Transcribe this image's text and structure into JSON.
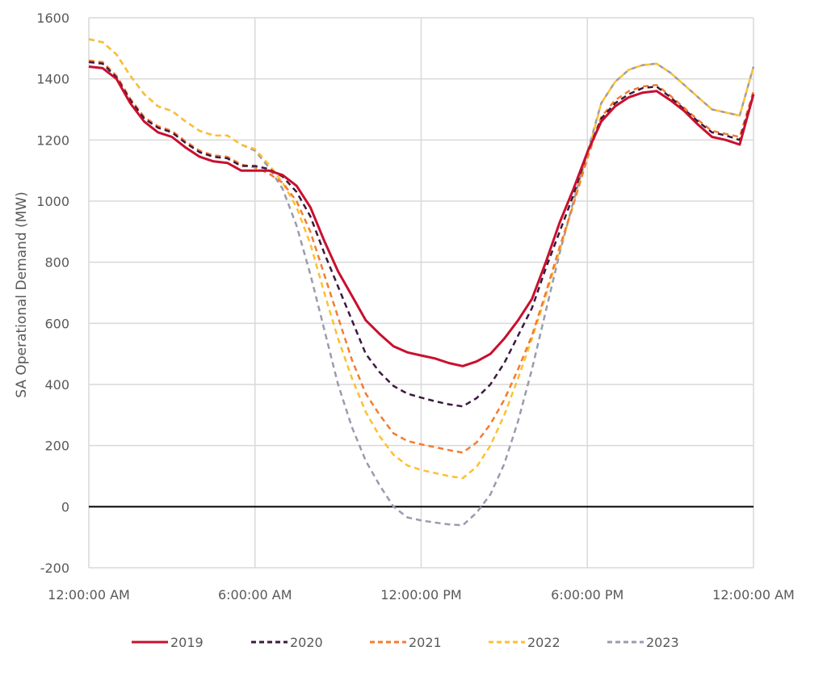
{
  "chart_data": {
    "type": "line",
    "title": "",
    "xlabel": "",
    "ylabel": "SA Operational Demand (MW)",
    "ylim": [
      -200,
      1600
    ],
    "yticks": [
      -200,
      0,
      200,
      400,
      600,
      800,
      1000,
      1200,
      1400,
      1600
    ],
    "xlim_hours": [
      0,
      24
    ],
    "xticks": [
      {
        "hour": 0,
        "label": "12:00:00 AM"
      },
      {
        "hour": 6,
        "label": "6:00:00 AM"
      },
      {
        "hour": 12,
        "label": "12:00:00 PM"
      },
      {
        "hour": 18,
        "label": "6:00:00 PM"
      },
      {
        "hour": 24,
        "label": "12:00:00 AM"
      }
    ],
    "x_step_hours": 0.5,
    "grid": true,
    "legend": "bottom",
    "series": [
      {
        "name": "2019",
        "color": "#c8102e",
        "dashed": false,
        "values": [
          1440,
          1435,
          1400,
          1320,
          1260,
          1225,
          1210,
          1175,
          1145,
          1130,
          1125,
          1100,
          1100,
          1100,
          1085,
          1050,
          980,
          870,
          770,
          690,
          610,
          565,
          525,
          505,
          495,
          485,
          470,
          460,
          475,
          500,
          550,
          610,
          680,
          800,
          930,
          1040,
          1160,
          1260,
          1310,
          1340,
          1355,
          1360,
          1330,
          1295,
          1250,
          1210,
          1200,
          1185,
          1350
        ]
      },
      {
        "name": "2020",
        "color": "#3b1a3f",
        "dashed": true,
        "values": [
          1455,
          1450,
          1405,
          1330,
          1270,
          1240,
          1225,
          1190,
          1160,
          1145,
          1140,
          1115,
          1115,
          1105,
          1080,
          1030,
          950,
          830,
          720,
          610,
          500,
          440,
          395,
          370,
          357,
          345,
          335,
          328,
          355,
          400,
          470,
          560,
          650,
          780,
          900,
          1020,
          1160,
          1270,
          1320,
          1350,
          1370,
          1375,
          1340,
          1300,
          1260,
          1225,
          1215,
          1200,
          1350
        ]
      },
      {
        "name": "2021",
        "color": "#f47c30",
        "dashed": true,
        "values": [
          1460,
          1455,
          1410,
          1335,
          1275,
          1245,
          1230,
          1195,
          1165,
          1150,
          1145,
          1120,
          1110,
          1090,
          1060,
          1000,
          900,
          760,
          620,
          480,
          370,
          300,
          240,
          215,
          204,
          195,
          185,
          177,
          210,
          270,
          350,
          450,
          560,
          700,
          850,
          990,
          1140,
          1275,
          1330,
          1360,
          1375,
          1380,
          1345,
          1305,
          1265,
          1230,
          1220,
          1210,
          1360
        ]
      },
      {
        "name": "2022",
        "color": "#fdc02f",
        "dashed": true,
        "values": [
          1530,
          1520,
          1480,
          1410,
          1350,
          1310,
          1295,
          1260,
          1230,
          1215,
          1215,
          1185,
          1170,
          1120,
          1060,
          980,
          860,
          700,
          550,
          420,
          310,
          230,
          170,
          135,
          120,
          110,
          100,
          93,
          130,
          200,
          300,
          420,
          550,
          690,
          840,
          990,
          1150,
          1320,
          1390,
          1430,
          1445,
          1450,
          1420,
          1380,
          1340,
          1300,
          1290,
          1280,
          1440
        ]
      },
      {
        "name": "2023",
        "color": "#9a9bb0",
        "dashed": true,
        "values": [
          1530,
          1520,
          1480,
          1410,
          1350,
          1310,
          1295,
          1260,
          1230,
          1215,
          1215,
          1185,
          1165,
          1110,
          1040,
          920,
          760,
          580,
          400,
          260,
          150,
          70,
          0,
          -35,
          -45,
          -52,
          -58,
          -61,
          -20,
          40,
          140,
          280,
          450,
          640,
          830,
          1000,
          1160,
          1320,
          1390,
          1430,
          1445,
          1450,
          1420,
          1380,
          1340,
          1300,
          1290,
          1280,
          1440
        ]
      }
    ]
  }
}
